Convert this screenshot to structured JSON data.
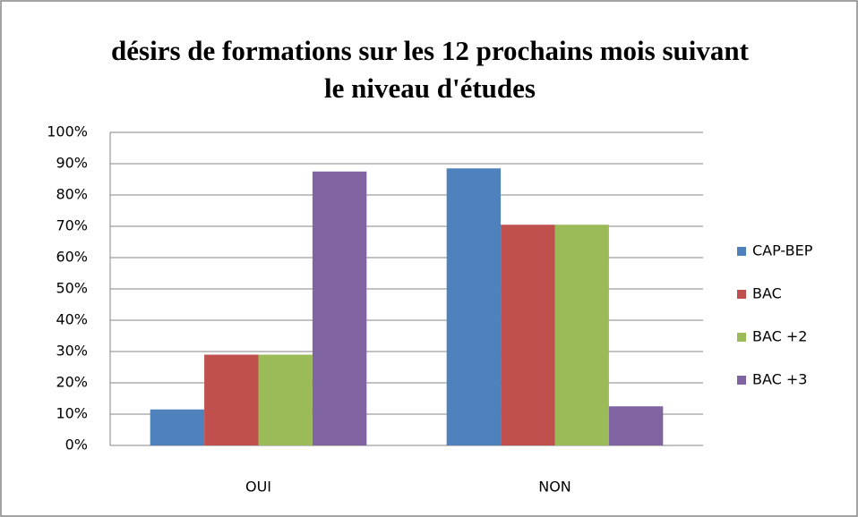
{
  "chart_data": {
    "type": "bar",
    "title": "désirs de formations sur les 12 prochains mois suivant le niveau d'études",
    "categories": [
      "OUI",
      "NON"
    ],
    "series": [
      {
        "name": "CAP-BEP",
        "color": "#4f81bd",
        "values": [
          11.5,
          88.5
        ]
      },
      {
        "name": "BAC",
        "color": "#c0504d",
        "values": [
          29,
          70.5
        ]
      },
      {
        "name": "BAC +2",
        "color": "#9bbb59",
        "values": [
          29,
          70.5
        ]
      },
      {
        "name": "BAC +3",
        "color": "#8064a2",
        "values": [
          87.5,
          12.5
        ]
      }
    ],
    "ylim": [
      0,
      100
    ],
    "yticks": [
      {
        "value": 0,
        "label": "0%"
      },
      {
        "value": 10,
        "label": "10%"
      },
      {
        "value": 20,
        "label": "20%"
      },
      {
        "value": 30,
        "label": "30%"
      },
      {
        "value": 40,
        "label": "40%"
      },
      {
        "value": 50,
        "label": "50%"
      },
      {
        "value": 60,
        "label": "60%"
      },
      {
        "value": 70,
        "label": "70%"
      },
      {
        "value": 80,
        "label": "80%"
      },
      {
        "value": 90,
        "label": "90%"
      },
      {
        "value": 100,
        "label": "100%"
      }
    ],
    "grid": true,
    "legend": "right"
  }
}
